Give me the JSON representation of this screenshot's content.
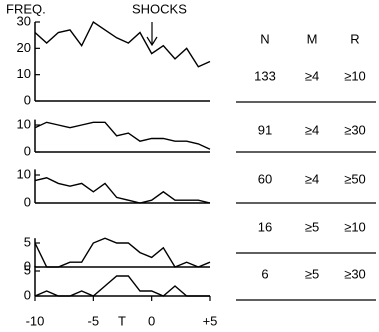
{
  "chart_data": [
    {
      "type": "line",
      "title": "FREQ.",
      "annotation": "SHOCKS",
      "x": [
        -10,
        -9,
        -8,
        -7,
        -6,
        -5,
        -4,
        -3,
        -2,
        -1,
        0,
        1,
        2,
        3,
        4,
        5
      ],
      "values": [
        26,
        22,
        26,
        27,
        21,
        30,
        27,
        24,
        22,
        26,
        18,
        21,
        16,
        20,
        13,
        15
      ],
      "color": "#000000",
      "xlim": [
        -10,
        5
      ],
      "ylim": [
        0,
        30
      ],
      "yticks": [
        0,
        10,
        20,
        30
      ]
    },
    {
      "type": "line",
      "x": [
        -10,
        -9,
        -8,
        -7,
        -6,
        -5,
        -4,
        -3,
        -2,
        -1,
        0,
        1,
        2,
        3,
        4,
        5
      ],
      "values": [
        9,
        11,
        10,
        9,
        10,
        11,
        11,
        6,
        7,
        4,
        5,
        5,
        4,
        4,
        3,
        1
      ],
      "color": "#000000",
      "xlim": [
        -10,
        5
      ],
      "ylim": [
        0,
        12
      ],
      "yticks": [
        0,
        10
      ]
    },
    {
      "type": "line",
      "x": [
        -10,
        -9,
        -8,
        -7,
        -6,
        -5,
        -4,
        -3,
        -2,
        -1,
        0,
        1,
        2,
        3,
        4,
        5
      ],
      "values": [
        8,
        9,
        7,
        6,
        7,
        4,
        7,
        2,
        1,
        0,
        1,
        4,
        1,
        1,
        1,
        0
      ],
      "color": "#000000",
      "xlim": [
        -10,
        5
      ],
      "ylim": [
        0,
        12
      ],
      "yticks": [
        0,
        10
      ]
    },
    {
      "type": "line",
      "x": [
        -10,
        -9,
        -8,
        -7,
        -6,
        -5,
        -4,
        -3,
        -2,
        -1,
        0,
        1,
        2,
        3,
        4,
        5
      ],
      "values": [
        5,
        0,
        0,
        1,
        1,
        5,
        6,
        5,
        5,
        3,
        2,
        4,
        0,
        1,
        0,
        1
      ],
      "color": "#000000",
      "xlim": [
        -10,
        5
      ],
      "ylim": [
        0,
        6
      ],
      "yticks": [
        0,
        5
      ]
    },
    {
      "type": "line",
      "x": [
        -10,
        -9,
        -8,
        -7,
        -6,
        -5,
        -4,
        -3,
        -2,
        -1,
        0,
        1,
        2,
        3,
        4,
        5
      ],
      "values": [
        0,
        1,
        0,
        0,
        1,
        0,
        2,
        4,
        4,
        1,
        1,
        0,
        2,
        0,
        0,
        0
      ],
      "color": "#000000",
      "xlim": [
        -10,
        5
      ],
      "ylim": [
        0,
        6
      ],
      "yticks": [
        0,
        5
      ],
      "x_label": "T",
      "xticks": [
        -10,
        {
          "value": -5,
          "label": "-5"
        },
        0,
        {
          "value": 5,
          "label": "+5"
        }
      ]
    }
  ],
  "table": {
    "header": [
      "N",
      "M",
      "R"
    ],
    "rows": [
      [
        "133",
        "≥4",
        "≥10"
      ],
      [
        "91",
        "≥4",
        "≥30"
      ],
      [
        "60",
        "≥4",
        "≥50"
      ],
      [
        "16",
        "≥5",
        "≥10"
      ],
      [
        "6",
        "≥5",
        "≥30"
      ]
    ]
  }
}
